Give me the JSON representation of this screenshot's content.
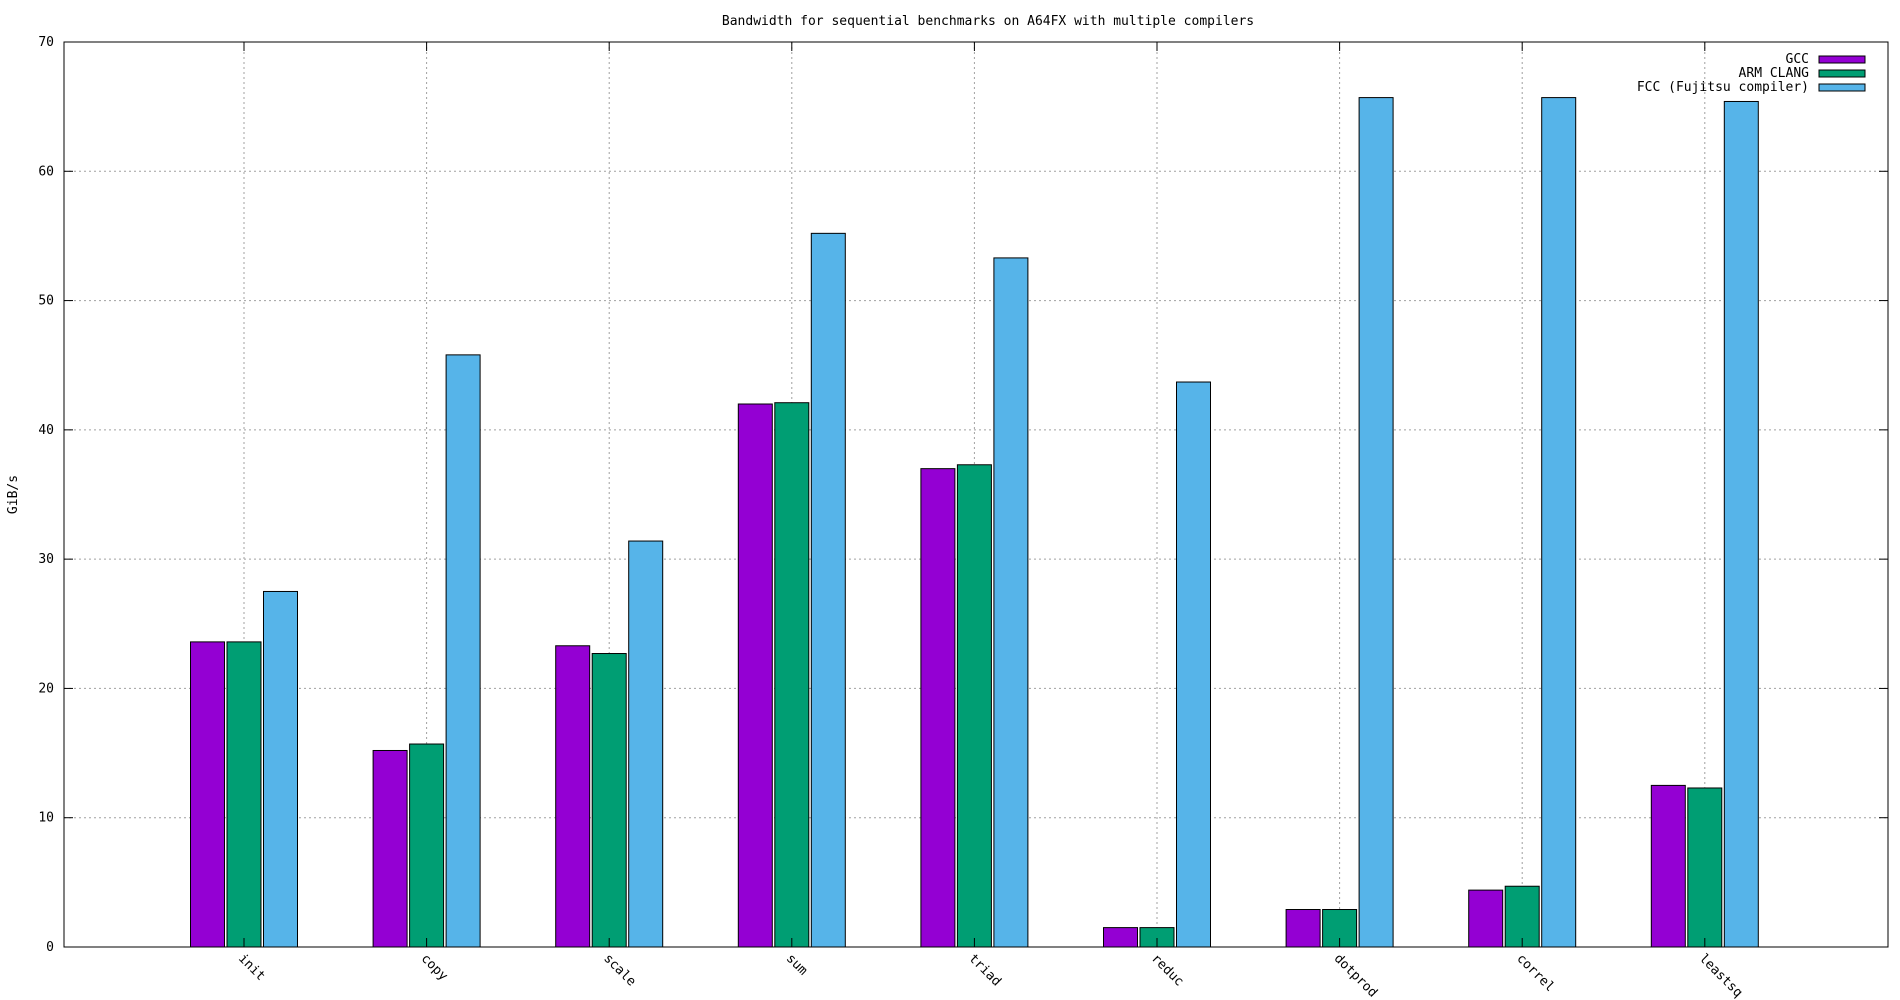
{
  "chart_data": {
    "type": "bar",
    "title": "Bandwidth for sequential benchmarks on A64FX with multiple compilers",
    "xlabel": "",
    "ylabel": "GiB/s",
    "ylim": [
      0,
      70
    ],
    "yticks": [
      0,
      10,
      20,
      30,
      40,
      50,
      60,
      70
    ],
    "grid": true,
    "legend_position": "top-right",
    "categories": [
      "init",
      "copy",
      "scale",
      "sum",
      "triad",
      "reduc",
      "dotprod",
      "correl",
      "leastsq"
    ],
    "series": [
      {
        "name": "GCC",
        "color": "#9400d3",
        "values": [
          23.6,
          15.2,
          23.3,
          42.0,
          37.0,
          1.5,
          2.9,
          4.4,
          12.5
        ]
      },
      {
        "name": "ARM CLANG",
        "color": "#009e73",
        "values": [
          23.6,
          15.7,
          22.7,
          42.1,
          37.3,
          1.5,
          2.9,
          4.7,
          12.3
        ]
      },
      {
        "name": "FCC (Fujitsu compiler)",
        "color": "#56b4e9",
        "values": [
          27.5,
          45.8,
          31.4,
          55.2,
          53.3,
          43.7,
          65.7,
          65.7,
          65.4
        ]
      }
    ]
  }
}
